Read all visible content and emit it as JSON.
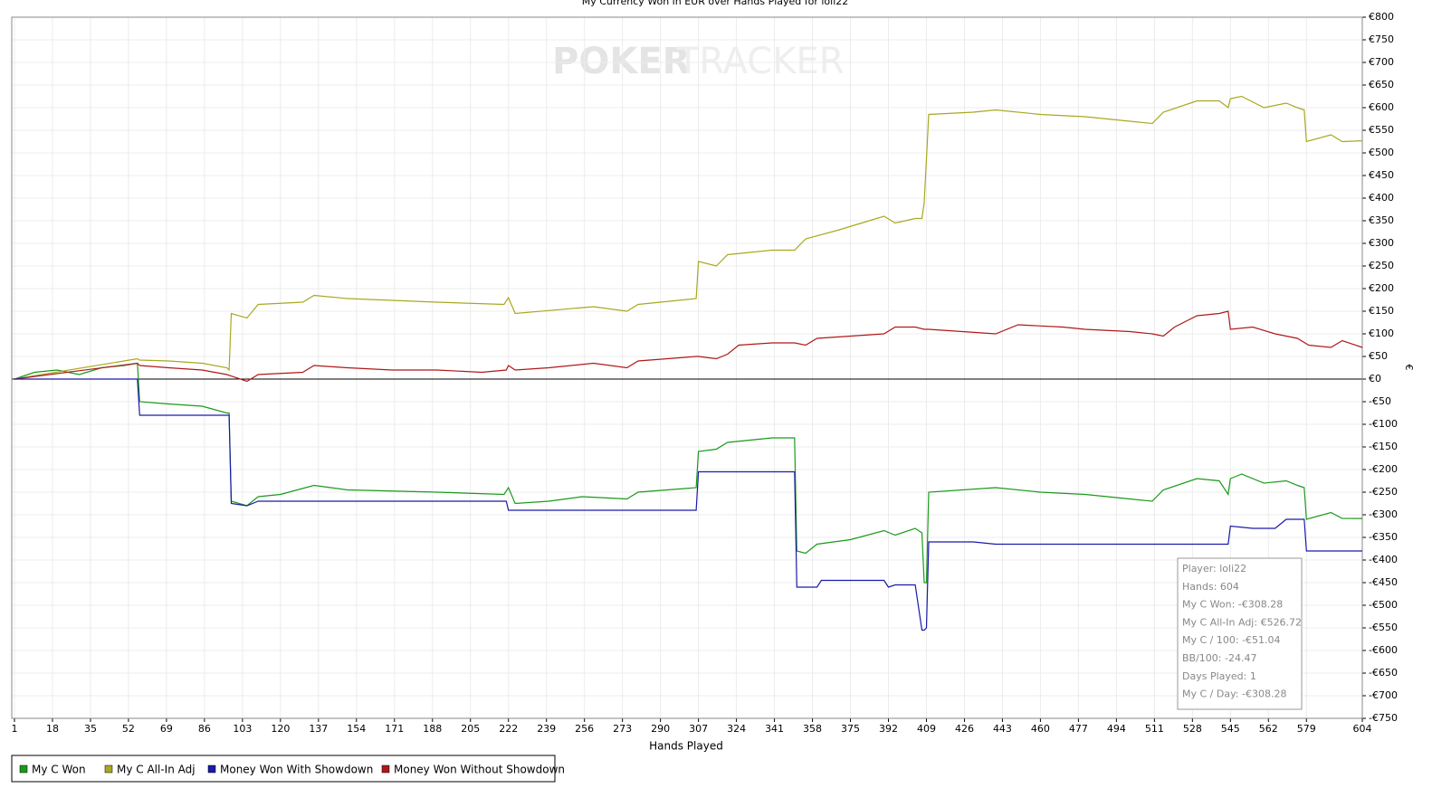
{
  "chart_data": {
    "type": "line",
    "title": "My Currency Won in EUR over Hands Played for loli22",
    "watermark": [
      "POKER",
      "TRACKER"
    ],
    "xlabel": "Hands Played",
    "ylabel": "€",
    "xlim": [
      1,
      604
    ],
    "xticks": [
      1,
      18,
      35,
      52,
      69,
      86,
      103,
      120,
      137,
      154,
      171,
      188,
      205,
      222,
      239,
      256,
      273,
      290,
      307,
      324,
      341,
      358,
      375,
      392,
      409,
      426,
      443,
      460,
      477,
      494,
      511,
      528,
      545,
      562,
      579,
      604
    ],
    "ylim": [
      -750,
      800
    ],
    "yticks": [
      {
        "value": 800,
        "label": "€800"
      },
      {
        "value": 750,
        "label": "€750"
      },
      {
        "value": 700,
        "label": "€700"
      },
      {
        "value": 650,
        "label": "€650"
      },
      {
        "value": 600,
        "label": "€600"
      },
      {
        "value": 550,
        "label": "€550"
      },
      {
        "value": 500,
        "label": "€500"
      },
      {
        "value": 450,
        "label": "€450"
      },
      {
        "value": 400,
        "label": "€400"
      },
      {
        "value": 350,
        "label": "€350"
      },
      {
        "value": 300,
        "label": "€300"
      },
      {
        "value": 250,
        "label": "€250"
      },
      {
        "value": 200,
        "label": "€200"
      },
      {
        "value": 150,
        "label": "€150"
      },
      {
        "value": 100,
        "label": "€100"
      },
      {
        "value": 50,
        "label": "€50"
      },
      {
        "value": 0,
        "label": "€0"
      },
      {
        "value": -50,
        "label": "-€50"
      },
      {
        "value": -100,
        "label": "-€100"
      },
      {
        "value": -150,
        "label": "-€150"
      },
      {
        "value": -200,
        "label": "-€200"
      },
      {
        "value": -250,
        "label": "-€250"
      },
      {
        "value": -300,
        "label": "-€300"
      },
      {
        "value": -350,
        "label": "-€350"
      },
      {
        "value": -400,
        "label": "-€400"
      },
      {
        "value": -450,
        "label": "-€450"
      },
      {
        "value": -500,
        "label": "-€500"
      },
      {
        "value": -550,
        "label": "-€550"
      },
      {
        "value": -600,
        "label": "-€600"
      },
      {
        "value": -650,
        "label": "-€650"
      },
      {
        "value": -700,
        "label": "-€700"
      },
      {
        "value": -750,
        "label": "-€750"
      }
    ],
    "grid": true,
    "series": [
      {
        "name": "My C Won",
        "color": "#1a9a1a",
        "x": [
          1,
          10,
          20,
          30,
          40,
          50,
          56,
          57,
          70,
          85,
          96,
          97,
          98,
          105,
          110,
          120,
          135,
          150,
          190,
          220,
          222,
          225,
          240,
          255,
          275,
          280,
          306,
          307,
          315,
          320,
          340,
          350,
          351,
          355,
          360,
          375,
          390,
          395,
          404,
          407,
          408,
          409,
          410,
          440,
          460,
          480,
          500,
          510,
          515,
          530,
          540,
          544,
          545,
          550,
          560,
          570,
          575,
          578,
          579,
          590,
          595,
          604
        ],
        "values": [
          0,
          15,
          20,
          10,
          25,
          30,
          35,
          -50,
          -55,
          -60,
          -75,
          -75,
          -270,
          -280,
          -260,
          -255,
          -235,
          -245,
          -250,
          -255,
          -240,
          -275,
          -270,
          -260,
          -265,
          -250,
          -240,
          -160,
          -155,
          -140,
          -130,
          -130,
          -380,
          -385,
          -365,
          -355,
          -335,
          -345,
          -330,
          -340,
          -450,
          -450,
          -250,
          -240,
          -250,
          -255,
          -265,
          -270,
          -245,
          -220,
          -225,
          -255,
          -220,
          -210,
          -230,
          -225,
          -235,
          -240,
          -310,
          -295,
          -308,
          -308.28
        ]
      },
      {
        "name": "My C All-In Adj",
        "color": "#a8a820",
        "x": [
          1,
          56,
          57,
          70,
          85,
          96,
          97,
          98,
          105,
          110,
          130,
          135,
          150,
          190,
          220,
          222,
          225,
          260,
          275,
          280,
          306,
          307,
          315,
          320,
          340,
          350,
          355,
          370,
          380,
          390,
          395,
          404,
          407,
          408,
          410,
          430,
          440,
          460,
          480,
          500,
          510,
          515,
          530,
          540,
          544,
          545,
          550,
          560,
          570,
          575,
          578,
          579,
          590,
          595,
          604
        ],
        "values": [
          0,
          45,
          42,
          40,
          35,
          25,
          20,
          145,
          135,
          165,
          170,
          185,
          178,
          170,
          165,
          180,
          145,
          160,
          150,
          165,
          178,
          260,
          250,
          275,
          285,
          285,
          310,
          330,
          345,
          360,
          345,
          355,
          355,
          390,
          585,
          590,
          595,
          585,
          580,
          570,
          565,
          590,
          615,
          615,
          600,
          620,
          625,
          600,
          610,
          600,
          595,
          525,
          540,
          525,
          526.72
        ]
      },
      {
        "name": "Money Won With Showdown",
        "color": "#1a1aaa",
        "x": [
          1,
          56,
          57,
          97,
          98,
          105,
          110,
          221,
          222,
          306,
          307,
          350,
          351,
          360,
          362,
          390,
          392,
          395,
          404,
          407,
          408,
          409,
          410,
          430,
          440,
          544,
          545,
          555,
          565,
          570,
          578,
          579,
          604
        ],
        "values": [
          0,
          0,
          -80,
          -80,
          -275,
          -280,
          -270,
          -270,
          -290,
          -290,
          -205,
          -205,
          -460,
          -460,
          -445,
          -445,
          -460,
          -455,
          -455,
          -555,
          -555,
          -550,
          -360,
          -360,
          -365,
          -365,
          -325,
          -330,
          -330,
          -310,
          -310,
          -380,
          -380
        ]
      },
      {
        "name": "Money Won Without Showdown",
        "color": "#b01818",
        "x": [
          1,
          56,
          57,
          70,
          85,
          96,
          105,
          110,
          130,
          135,
          150,
          170,
          190,
          210,
          221,
          222,
          225,
          240,
          260,
          275,
          280,
          306,
          307,
          315,
          320,
          325,
          340,
          350,
          355,
          360,
          375,
          390,
          395,
          404,
          408,
          410,
          440,
          450,
          470,
          480,
          500,
          510,
          515,
          520,
          530,
          540,
          544,
          545,
          555,
          565,
          570,
          575,
          580,
          590,
          595,
          604
        ],
        "values": [
          0,
          35,
          30,
          25,
          20,
          10,
          -5,
          10,
          15,
          30,
          25,
          20,
          20,
          15,
          20,
          30,
          20,
          25,
          35,
          25,
          40,
          50,
          50,
          45,
          55,
          75,
          80,
          80,
          75,
          90,
          95,
          100,
          115,
          115,
          110,
          110,
          100,
          120,
          115,
          110,
          105,
          100,
          95,
          115,
          140,
          145,
          150,
          110,
          115,
          100,
          95,
          90,
          75,
          70,
          85,
          70
        ]
      }
    ],
    "tooltip": [
      "Player: loli22",
      "Hands: 604",
      "My C Won: -€308.28",
      "My C All-In Adj: €526.72",
      "My C / 100: -€51.04",
      "BB/100: -24.47",
      "Days Played: 1",
      "My C / Day: -€308.28"
    ]
  }
}
